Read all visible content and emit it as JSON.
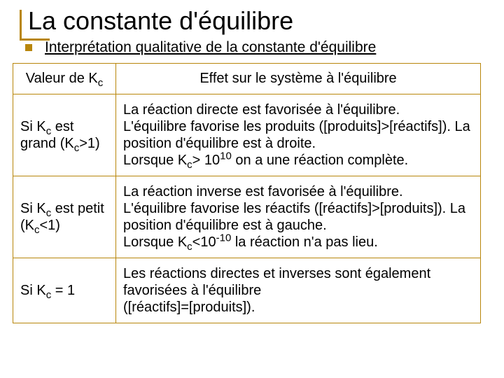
{
  "colors": {
    "accent": "#b8860b",
    "text": "#000000",
    "background": "#ffffff"
  },
  "title": "La constante d'équilibre",
  "subtitle": "Interprétation qualitative de la constante d'équilibre",
  "table": {
    "headers": {
      "kc": "Valeur de K",
      "kc_sub": "c",
      "effect": "Effet sur le système à l'équilibre"
    },
    "rows": [
      {
        "kc_html": "Si K<span class='sub'>c</span> est grand (K<span class='sub'>c</span>&gt;1)",
        "effect_html": "La réaction directe est favorisée à l'équilibre.<br>L'équilibre favorise les produits ([produits]&gt;[réactifs]). La position d'équilibre est à droite.<br>Lorsque K<span class='sub'>c</span>&gt; 10<span class='sup'>10</span> on a une réaction complète."
      },
      {
        "kc_html": "Si K<span class='sub'>c</span> est petit (K<span class='sub'>c</span>&lt;1)",
        "effect_html": "La réaction inverse est favorisée à l'équilibre.<br>L'équilibre favorise les réactifs ([réactifs]&gt;[produits]). La position d'équilibre est à gauche.<br>Lorsque K<span class='sub'>c</span>&lt;10<span class='sup'>-10</span> la réaction n'a pas lieu."
      },
      {
        "kc_html": "Si K<span class='sub'>c</span> = 1",
        "effect_html": "Les réactions directes et inverses sont également favorisées à l'équilibre<br>([réactifs]=[produits])."
      }
    ]
  }
}
